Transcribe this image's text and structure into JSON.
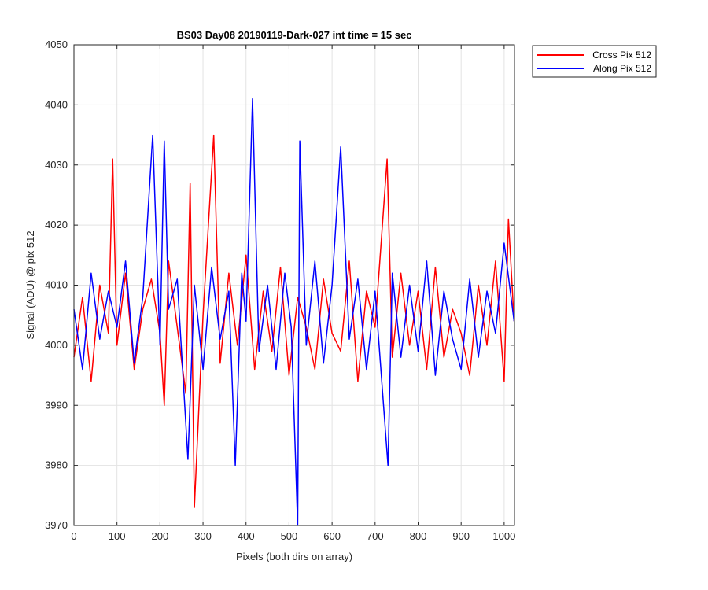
{
  "chart_data": {
    "type": "line",
    "title": "BS03 Day08 20190119-Dark-027 int time = 15 sec",
    "xlabel": "Pixels (both dirs on array)",
    "ylabel": "Signal (ADU) @ pix 512",
    "xlim": [
      0,
      1024
    ],
    "ylim": [
      3970,
      4050
    ],
    "xticks": [
      0,
      100,
      200,
      300,
      400,
      500,
      600,
      700,
      800,
      900,
      1000
    ],
    "yticks": [
      3970,
      3980,
      3990,
      4000,
      4010,
      4020,
      4030,
      4040,
      4050
    ],
    "grid": true,
    "legend_position": "outside top-right",
    "series": [
      {
        "name": "Cross Pix 512",
        "color": "#ff0000",
        "x": [
          0,
          20,
          40,
          60,
          80,
          90,
          100,
          120,
          140,
          160,
          180,
          200,
          210,
          220,
          240,
          260,
          270,
          280,
          300,
          325,
          340,
          360,
          380,
          400,
          420,
          440,
          460,
          480,
          500,
          520,
          540,
          560,
          580,
          600,
          620,
          640,
          660,
          680,
          700,
          728,
          740,
          760,
          780,
          800,
          820,
          840,
          860,
          880,
          900,
          920,
          940,
          960,
          980,
          1000,
          1010,
          1023
        ],
        "y": [
          3998,
          4008,
          3994,
          4010,
          4002,
          4031,
          4000,
          4012,
          3996,
          4006,
          4011,
          4002,
          3990,
          4014,
          4003,
          3992,
          4027,
          3973,
          4005,
          4035,
          3997,
          4012,
          4000,
          4015,
          3996,
          4009,
          3999,
          4013,
          3995,
          4008,
          4003,
          3996,
          4011,
          4002,
          3999,
          4014,
          3994,
          4009,
          4003,
          4031,
          3998,
          4012,
          4000,
          4009,
          3996,
          4013,
          3998,
          4006,
          4002,
          3995,
          4010,
          4000,
          4014,
          3994,
          4021,
          4004
        ]
      },
      {
        "name": "Along Pix 512",
        "color": "#0000ff",
        "x": [
          0,
          20,
          40,
          60,
          80,
          100,
          120,
          140,
          160,
          183,
          200,
          210,
          220,
          240,
          265,
          280,
          300,
          320,
          340,
          360,
          375,
          390,
          400,
          415,
          430,
          450,
          470,
          490,
          505,
          520,
          525,
          540,
          560,
          580,
          600,
          620,
          640,
          660,
          680,
          700,
          730,
          740,
          760,
          780,
          800,
          820,
          840,
          860,
          880,
          900,
          920,
          940,
          960,
          980,
          1000,
          1023
        ],
        "y": [
          4006,
          3996,
          4012,
          4001,
          4009,
          4003,
          4014,
          3997,
          4008,
          4035,
          4000,
          4034,
          4006,
          4011,
          3981,
          4010,
          3996,
          4013,
          4001,
          4009,
          3980,
          4012,
          4004,
          4041,
          3999,
          4010,
          3996,
          4012,
          4003,
          3970,
          4034,
          4000,
          4014,
          3997,
          4010,
          4033,
          4001,
          4011,
          3996,
          4009,
          3980,
          4012,
          3998,
          4010,
          3999,
          4014,
          3995,
          4009,
          4001,
          3996,
          4011,
          3998,
          4009,
          4002,
          4017,
          4004
        ]
      }
    ]
  }
}
